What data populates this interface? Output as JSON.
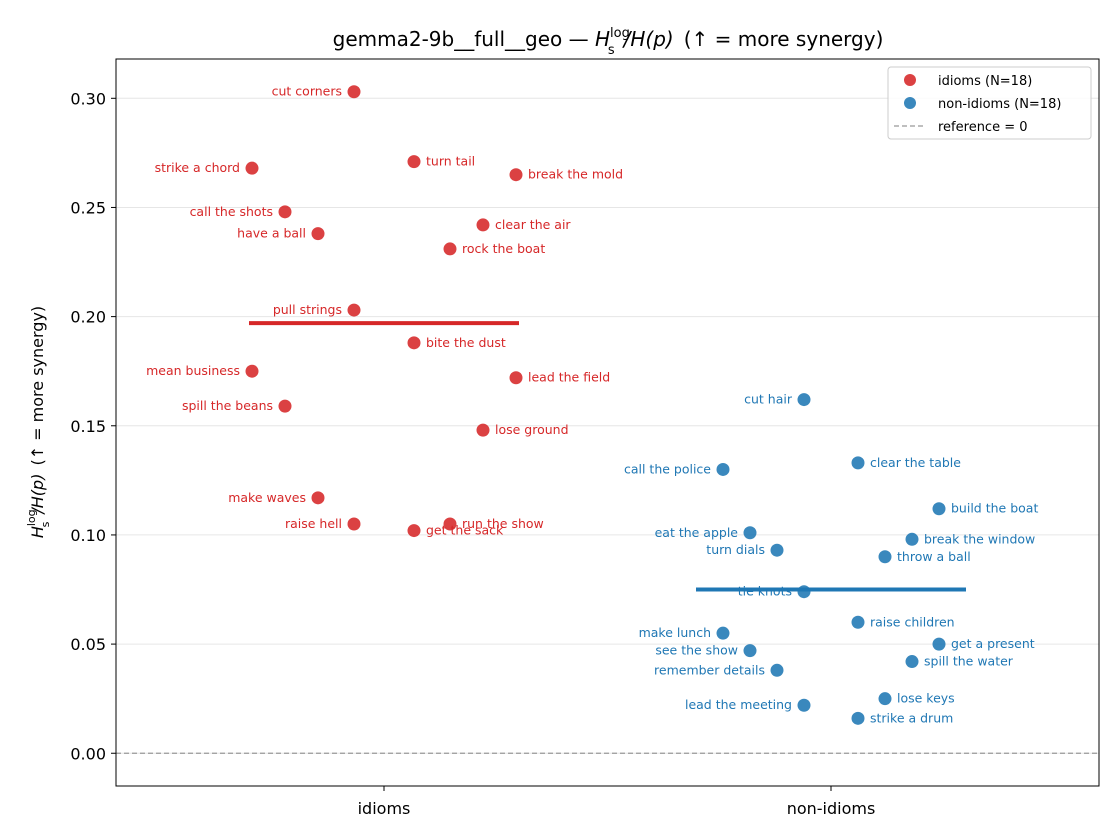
{
  "chart_data": {
    "type": "scatter",
    "title_main": "gemma2-9b__full__geo — ",
    "title_math_H": "H",
    "title_math_sup": "log",
    "title_math_sub": "s",
    "title_math_rest": "/H(p)",
    "title_suffix": "(↑ = more synergy)",
    "ylabel_H": "H",
    "ylabel_sup": "log",
    "ylabel_sub": "s",
    "ylabel_rest": "/H(p)",
    "ylabel_suffix": "(↑ = more synergy)",
    "categories": [
      "idioms",
      "non-idioms"
    ],
    "ylim": [
      -0.015,
      0.318
    ],
    "yticks": [
      "0.00",
      "0.05",
      "0.10",
      "0.15",
      "0.20",
      "0.25",
      "0.30"
    ],
    "grid": true,
    "legend_position": "top-right",
    "reference_value": 0,
    "series": [
      {
        "name": "idioms (N=18)",
        "category": "idioms",
        "color": "#d62728",
        "mean": 0.197,
        "points": [
          {
            "label": "cut corners",
            "y": 0.303,
            "jitter": -0.1,
            "side": "left"
          },
          {
            "label": "strike a chord",
            "y": 0.268,
            "jitter": -0.44,
            "side": "left"
          },
          {
            "label": "turn tail",
            "y": 0.271,
            "jitter": 0.1,
            "side": "right"
          },
          {
            "label": "break the mold",
            "y": 0.265,
            "jitter": 0.44,
            "side": "right"
          },
          {
            "label": "call the shots",
            "y": 0.248,
            "jitter": -0.33,
            "side": "left"
          },
          {
            "label": "have a ball",
            "y": 0.238,
            "jitter": -0.22,
            "side": "left"
          },
          {
            "label": "clear the air",
            "y": 0.242,
            "jitter": 0.33,
            "side": "right"
          },
          {
            "label": "rock the boat",
            "y": 0.231,
            "jitter": 0.22,
            "side": "right"
          },
          {
            "label": "pull strings",
            "y": 0.203,
            "jitter": -0.1,
            "side": "left"
          },
          {
            "label": "bite the dust",
            "y": 0.188,
            "jitter": 0.1,
            "side": "right"
          },
          {
            "label": "mean business",
            "y": 0.175,
            "jitter": -0.44,
            "side": "left"
          },
          {
            "label": "lead the field",
            "y": 0.172,
            "jitter": 0.44,
            "side": "right"
          },
          {
            "label": "spill the beans",
            "y": 0.159,
            "jitter": -0.33,
            "side": "left"
          },
          {
            "label": "lose ground",
            "y": 0.148,
            "jitter": 0.33,
            "side": "right"
          },
          {
            "label": "make waves",
            "y": 0.117,
            "jitter": -0.22,
            "side": "left"
          },
          {
            "label": "raise hell",
            "y": 0.105,
            "jitter": -0.1,
            "side": "left"
          },
          {
            "label": "run the show",
            "y": 0.105,
            "jitter": 0.22,
            "side": "right"
          },
          {
            "label": "get the sack",
            "y": 0.102,
            "jitter": 0.1,
            "side": "right"
          }
        ]
      },
      {
        "name": "non-idioms (N=18)",
        "category": "non-idioms",
        "color": "#1f77b4",
        "mean": 0.075,
        "points": [
          {
            "label": "cut hair",
            "y": 0.162,
            "jitter": -0.09,
            "side": "left"
          },
          {
            "label": "call the police",
            "y": 0.13,
            "jitter": -0.36,
            "side": "left"
          },
          {
            "label": "clear the table",
            "y": 0.133,
            "jitter": 0.09,
            "side": "right"
          },
          {
            "label": "build the boat",
            "y": 0.112,
            "jitter": 0.36,
            "side": "right"
          },
          {
            "label": "eat the apple",
            "y": 0.101,
            "jitter": -0.27,
            "side": "left"
          },
          {
            "label": "break the window",
            "y": 0.098,
            "jitter": 0.27,
            "side": "right"
          },
          {
            "label": "turn dials",
            "y": 0.093,
            "jitter": -0.18,
            "side": "left"
          },
          {
            "label": "throw a ball",
            "y": 0.09,
            "jitter": 0.18,
            "side": "right"
          },
          {
            "label": "tie knots",
            "y": 0.074,
            "jitter": -0.09,
            "side": "left"
          },
          {
            "label": "raise children",
            "y": 0.06,
            "jitter": 0.09,
            "side": "right"
          },
          {
            "label": "make lunch",
            "y": 0.055,
            "jitter": -0.36,
            "side": "left"
          },
          {
            "label": "get a present",
            "y": 0.05,
            "jitter": 0.36,
            "side": "right"
          },
          {
            "label": "see the show",
            "y": 0.047,
            "jitter": -0.27,
            "side": "left"
          },
          {
            "label": "spill the water",
            "y": 0.042,
            "jitter": 0.27,
            "side": "right"
          },
          {
            "label": "remember details",
            "y": 0.038,
            "jitter": -0.18,
            "side": "left"
          },
          {
            "label": "lose keys",
            "y": 0.025,
            "jitter": 0.18,
            "side": "right"
          },
          {
            "label": "lead the meeting",
            "y": 0.022,
            "jitter": -0.09,
            "side": "left"
          },
          {
            "label": "strike a drum",
            "y": 0.016,
            "jitter": 0.09,
            "side": "right"
          }
        ]
      }
    ],
    "legend": {
      "reference_label": "reference = 0"
    }
  }
}
